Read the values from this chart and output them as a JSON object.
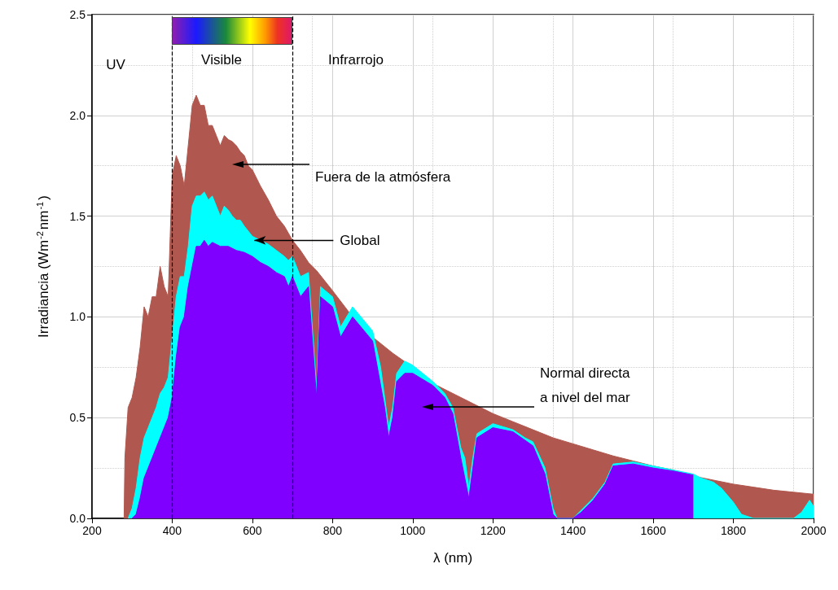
{
  "chart_data": {
    "type": "area",
    "xlabel": "λ (nm)",
    "ylabel": "Irradiancia (Wm$^{-2}$nm$^{-1}$)",
    "xlim": [
      200,
      2000
    ],
    "xticks": [
      200,
      400,
      600,
      800,
      1000,
      1200,
      1400,
      1600,
      1800,
      2000
    ],
    "ylim": [
      0,
      2.5
    ],
    "yticks": [
      {
        "value": 0,
        "label": "0.0"
      },
      {
        "value": 0.5,
        "label": "0.5"
      },
      {
        "value": 1,
        "label": "1.0"
      },
      {
        "value": 1.5,
        "label": "1.5"
      },
      {
        "value": 2,
        "label": "2.0"
      },
      {
        "value": 2.5,
        "label": "2.5"
      }
    ],
    "grid": true,
    "marker": "none",
    "series": [
      {
        "color": "#b0584f",
        "x": [
          280,
          282,
          290,
          300,
          310,
          320,
          330,
          340,
          350,
          360,
          370,
          380,
          390,
          395,
          400,
          410,
          420,
          430,
          440,
          450,
          460,
          470,
          480,
          490,
          500,
          510,
          520,
          530,
          540,
          550,
          560,
          570,
          580,
          590,
          600,
          620,
          640,
          660,
          680,
          700,
          720,
          740,
          760,
          780,
          800,
          850,
          900,
          950,
          1000,
          1050,
          1100,
          1150,
          1200,
          1250,
          1300,
          1350,
          1400,
          1450,
          1500,
          1550,
          1600,
          1650,
          1700,
          1750,
          1800,
          1850,
          1900,
          1950,
          2000
        ],
        "values": [
          0,
          0.3,
          0.55,
          0.6,
          0.7,
          0.85,
          1.05,
          1.0,
          1.1,
          1.1,
          1.25,
          1.15,
          1.1,
          1.4,
          1.7,
          1.8,
          1.75,
          1.65,
          1.85,
          2.05,
          2.1,
          2.05,
          2.05,
          1.95,
          1.95,
          1.9,
          1.85,
          1.9,
          1.88,
          1.87,
          1.85,
          1.82,
          1.8,
          1.75,
          1.73,
          1.65,
          1.58,
          1.5,
          1.45,
          1.38,
          1.33,
          1.27,
          1.23,
          1.18,
          1.13,
          1.0,
          0.9,
          0.82,
          0.75,
          0.67,
          0.62,
          0.57,
          0.52,
          0.48,
          0.44,
          0.4,
          0.37,
          0.34,
          0.31,
          0.285,
          0.26,
          0.24,
          0.21,
          0.19,
          0.17,
          0.155,
          0.14,
          0.13,
          0.12
        ]
      },
      {
        "color": "#00ffff",
        "x": [
          290,
          300,
          310,
          320,
          330,
          340,
          350,
          360,
          370,
          380,
          390,
          400,
          410,
          420,
          430,
          440,
          450,
          460,
          470,
          480,
          490,
          500,
          510,
          520,
          530,
          540,
          550,
          560,
          570,
          580,
          600,
          620,
          640,
          660,
          680,
          690,
          700,
          720,
          740,
          760,
          770,
          800,
          820,
          850,
          900,
          920,
          930,
          940,
          950,
          960,
          980,
          1000,
          1050,
          1080,
          1100,
          1120,
          1130,
          1140,
          1150,
          1160,
          1200,
          1250,
          1280,
          1300,
          1330,
          1350,
          1360,
          1400,
          1420,
          1450,
          1480,
          1500,
          1550,
          1600,
          1650,
          1700,
          1720,
          1750,
          1770,
          1800,
          1820,
          1850,
          1950,
          1970,
          1990,
          2000
        ],
        "values": [
          0,
          0.05,
          0.15,
          0.3,
          0.4,
          0.45,
          0.5,
          0.55,
          0.62,
          0.65,
          0.7,
          0.9,
          1.1,
          1.2,
          1.2,
          1.35,
          1.55,
          1.6,
          1.6,
          1.62,
          1.58,
          1.6,
          1.55,
          1.5,
          1.55,
          1.53,
          1.5,
          1.48,
          1.48,
          1.45,
          1.4,
          1.38,
          1.36,
          1.33,
          1.3,
          1.28,
          1.3,
          1.2,
          1.22,
          0.65,
          1.15,
          1.1,
          0.95,
          1.05,
          0.93,
          0.75,
          0.6,
          0.45,
          0.55,
          0.72,
          0.78,
          0.76,
          0.68,
          0.62,
          0.55,
          0.35,
          0.3,
          0.15,
          0.3,
          0.42,
          0.47,
          0.44,
          0.4,
          0.38,
          0.25,
          0.05,
          0,
          0,
          0.04,
          0.1,
          0.18,
          0.27,
          0.28,
          0.26,
          0.24,
          0.22,
          0.2,
          0.18,
          0.15,
          0.08,
          0.02,
          0,
          0,
          0.03,
          0.09,
          0.06
        ]
      },
      {
        "color": "#7f00ff",
        "x": [
          300,
          310,
          320,
          330,
          340,
          350,
          360,
          370,
          380,
          390,
          400,
          410,
          420,
          430,
          440,
          450,
          460,
          470,
          480,
          490,
          500,
          520,
          540,
          560,
          580,
          600,
          620,
          640,
          660,
          680,
          690,
          700,
          720,
          740,
          760,
          770,
          800,
          820,
          850,
          900,
          930,
          940,
          950,
          960,
          980,
          1000,
          1050,
          1080,
          1100,
          1120,
          1140,
          1160,
          1200,
          1250,
          1300,
          1330,
          1350,
          1360,
          1400,
          1420,
          1450,
          1480,
          1500,
          1550,
          1600,
          1650,
          1700
        ],
        "values": [
          0,
          0.02,
          0.1,
          0.2,
          0.25,
          0.3,
          0.35,
          0.4,
          0.45,
          0.5,
          0.6,
          0.8,
          0.95,
          1.0,
          1.15,
          1.25,
          1.35,
          1.35,
          1.38,
          1.35,
          1.37,
          1.35,
          1.35,
          1.33,
          1.32,
          1.3,
          1.27,
          1.25,
          1.22,
          1.2,
          1.15,
          1.2,
          1.1,
          1.15,
          0.6,
          1.1,
          1.05,
          0.9,
          1.0,
          0.88,
          0.55,
          0.4,
          0.5,
          0.68,
          0.72,
          0.72,
          0.66,
          0.6,
          0.52,
          0.3,
          0.1,
          0.4,
          0.45,
          0.43,
          0.36,
          0.22,
          0.02,
          0,
          0,
          0.03,
          0.09,
          0.17,
          0.26,
          0.27,
          0.25,
          0.235,
          0.215
        ]
      }
    ],
    "ref_lines": [
      {
        "axis": "x",
        "value": 400,
        "color": "#000000",
        "line_style": "dashed"
      },
      {
        "axis": "x",
        "value": 700,
        "color": "#000000",
        "line_style": "dashed"
      }
    ],
    "annotations": [
      "UV",
      "Visible",
      "Infrarrojo",
      "Fuera de la atmósfera",
      {
        "text": "Global",
        "x": 605,
        "y": 1.38
      },
      "Normal directa\na nivel del mar"
    ]
  }
}
